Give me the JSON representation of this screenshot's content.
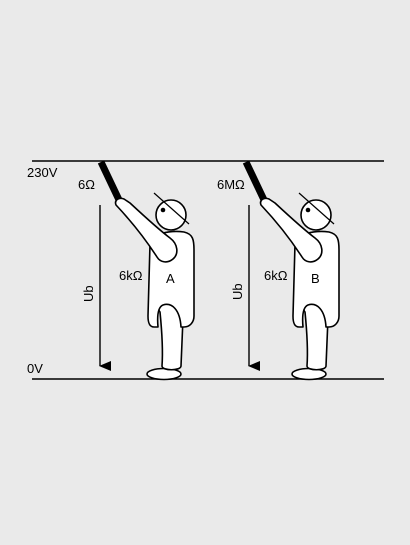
{
  "diagram": {
    "voltage_top": "230V",
    "voltage_bottom": "0V",
    "left_person": {
      "tool_resistance": "6Ω",
      "body_resistance": "6kΩ",
      "letter": "A",
      "voltage_arrow": "Ub"
    },
    "right_person": {
      "tool_resistance": "6MΩ",
      "body_resistance": "6kΩ",
      "letter": "B",
      "voltage_arrow": "Ub"
    }
  }
}
